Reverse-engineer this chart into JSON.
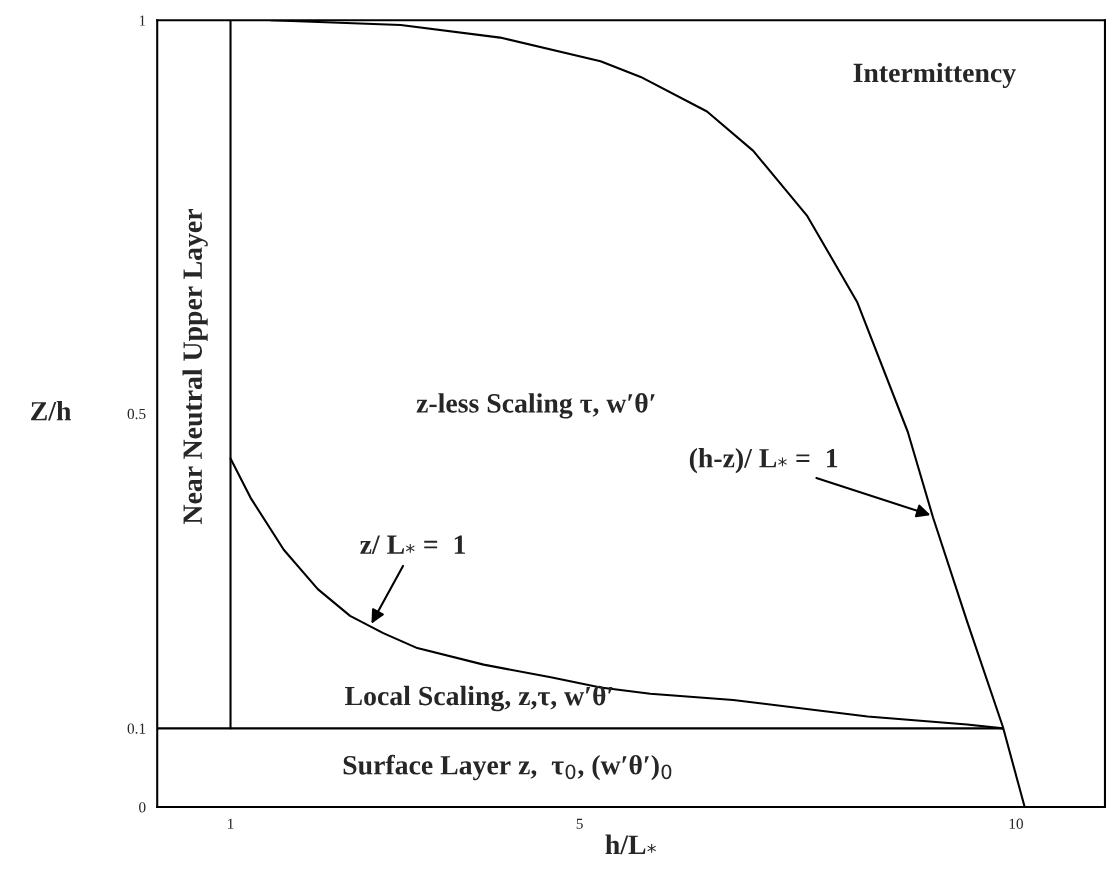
{
  "chart_data": {
    "type": "line",
    "xlabel": "h/L$_{*}$",
    "ylabel": "Z/h",
    "xlim": [
      0.16,
      11.02
    ],
    "ylim": [
      0,
      1
    ],
    "xticks": [
      1,
      5,
      10
    ],
    "yticks": [
      0,
      0.1,
      0.5,
      1
    ],
    "grid": false,
    "legend": false,
    "marker": "none",
    "line_style": "solid",
    "series": [
      {
        "color": "#000000",
        "x": [
          1.46,
          2.95,
          4.09,
          5.24,
          5.7,
          6.46,
          6.99,
          7.61,
          8.18,
          8.76,
          9.05,
          9.44,
          9.85,
          10.1
        ],
        "values": [
          1.0,
          0.994,
          0.978,
          0.948,
          0.928,
          0.884,
          0.834,
          0.751,
          0.642,
          0.477,
          0.368,
          0.236,
          0.102,
          0
        ]
      },
      {
        "color": "#000000",
        "x": [
          1.0,
          1.23,
          1.61,
          2.0,
          2.37,
          2.75,
          3.14,
          3.9,
          4.67,
          5.24,
          5.81,
          6.76,
          8.3,
          9.44,
          9.85
        ],
        "values": [
          0.443,
          0.393,
          0.327,
          0.277,
          0.243,
          0.221,
          0.202,
          0.181,
          0.165,
          0.152,
          0.144,
          0.136,
          0.115,
          0.105,
          0.1
        ]
      },
      {
        "color": "#000000",
        "x": [
          1,
          1
        ],
        "values": [
          0.1,
          1
        ]
      },
      {
        "color": "#000000",
        "x": [
          0.16,
          9.85
        ],
        "values": [
          0.1,
          0.1
        ]
      }
    ],
    "annotations": [
      "Intermittency",
      "z-less Scaling τ, w′θ′",
      "Near Neutral Upper Layer",
      "Local Scaling, z,τ, w′θ′",
      "Surface Layer z,  τ$_{0}$, (w′θ′)$_{0}$",
      {
        "text": "z/ L$_{*}$ =  1",
        "x": 2.6,
        "y": 0.23
      },
      {
        "text": "(h-z)/ L$_{*}$ =  1",
        "x": 9.05,
        "y": 0.37
      }
    ]
  }
}
